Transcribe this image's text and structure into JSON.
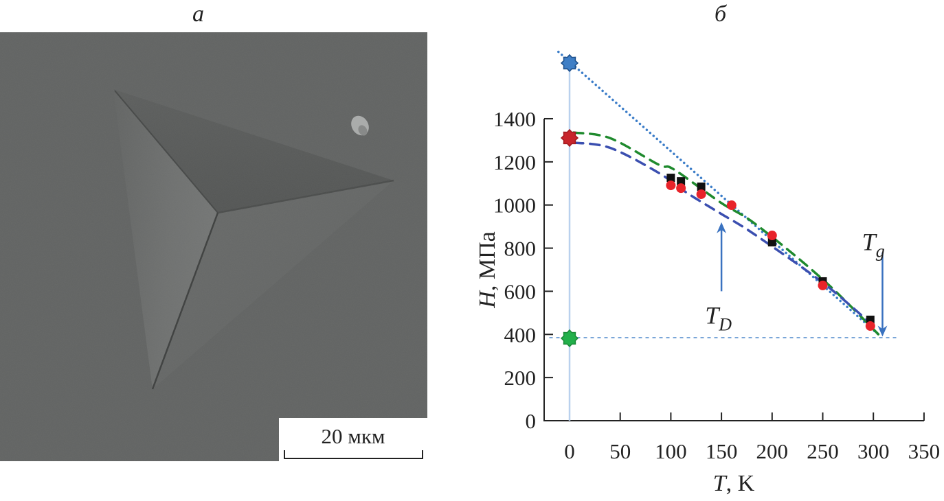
{
  "panels": {
    "a_label": "a",
    "b_label": "б"
  },
  "sem_image": {
    "description": "SEM micrograph of a Berkovich indentation imprint",
    "scale_bar_label": "20 мкм",
    "colors": {
      "background": "#636564",
      "dark_face": "#555756",
      "light_face": "#6c6e6d"
    }
  },
  "chart_data": {
    "type": "scatter",
    "title": "",
    "xlabel": "T, K",
    "xlabel_italic": "T",
    "xlabel_rest": ", K",
    "ylabel": "H, МПа",
    "ylabel_italic": "H",
    "ylabel_rest": ", МПа",
    "xlim": [
      -25,
      350
    ],
    "ylim": [
      0,
      1400
    ],
    "x_ticks": [
      0,
      50,
      100,
      150,
      200,
      250,
      300,
      350
    ],
    "y_ticks": [
      0,
      200,
      400,
      600,
      800,
      1000,
      1200,
      1400
    ],
    "x_tick_labels": [
      "0",
      "50",
      "100",
      "150",
      "200",
      "250",
      "300",
      "350"
    ],
    "y_tick_labels": [
      "0",
      "200",
      "400",
      "600",
      "800",
      "1000",
      "1200",
      "1400"
    ],
    "grid": false,
    "series": [
      {
        "name": "squares",
        "marker": "square",
        "color": "#111111",
        "points": [
          [
            100,
            1126
          ],
          [
            110,
            1110
          ],
          [
            130,
            1085
          ],
          [
            200,
            827
          ],
          [
            250,
            646
          ],
          [
            297,
            468
          ]
        ]
      },
      {
        "name": "circles",
        "marker": "circle",
        "color": "#e8232a",
        "points": [
          [
            100,
            1091
          ],
          [
            110,
            1078
          ],
          [
            130,
            1050
          ],
          [
            160,
            999
          ],
          [
            200,
            859
          ],
          [
            250,
            627
          ],
          [
            297,
            439
          ]
        ]
      },
      {
        "name": "fit-green",
        "type": "line",
        "style": "dashed",
        "color": "#1f8a2e",
        "points": [
          [
            4,
            1336
          ],
          [
            40,
            1310
          ],
          [
            88,
            1187
          ],
          [
            103,
            1165
          ],
          [
            149,
            1012
          ],
          [
            184,
            910
          ],
          [
            250,
            655
          ],
          [
            307,
            391
          ]
        ]
      },
      {
        "name": "fit-blue",
        "type": "line",
        "style": "dashed",
        "color": "#3b4fb0",
        "points": [
          [
            4,
            1289
          ],
          [
            40,
            1265
          ],
          [
            88,
            1149
          ],
          [
            116,
            1056
          ],
          [
            149,
            961
          ],
          [
            181,
            869
          ],
          [
            250,
            640
          ],
          [
            300,
            440
          ]
        ]
      },
      {
        "name": "linear-extrapolation",
        "type": "line",
        "style": "dotted",
        "color": "#3a7cc8",
        "points": [
          [
            -11,
            1710
          ],
          [
            307,
            391
          ]
        ]
      },
      {
        "name": "athermal-level",
        "type": "line",
        "style": "dashed-thin",
        "color": "#7aa6d8",
        "points": [
          [
            -20,
            385
          ],
          [
            325,
            385
          ]
        ]
      },
      {
        "name": "T0-vertical",
        "type": "line",
        "style": "solid-thin",
        "color": "#b9d1ee",
        "points": [
          [
            0,
            1658
          ],
          [
            0,
            0
          ]
        ]
      }
    ],
    "special_markers": [
      {
        "name": "blue-star",
        "x": 0,
        "y": 1658,
        "color": "#3f7fc6",
        "edge": "#1d4f8a"
      },
      {
        "name": "red-star",
        "x": 0,
        "y": 1311,
        "color": "#c8252b",
        "edge": "#a01a1f"
      },
      {
        "name": "green-star",
        "x": 0,
        "y": 382,
        "color": "#22b04a",
        "edge": "#1a8a38"
      }
    ],
    "annotations": [
      {
        "name": "TD",
        "text": "T",
        "subscript": "D",
        "arrow_x": 150,
        "arrow_from": 600,
        "arrow_to": 920,
        "label_x": 147,
        "label_y": 450
      },
      {
        "name": "Tg",
        "text": "T",
        "subscript": "g",
        "arrow_x": 309,
        "arrow_from": 780,
        "arrow_to": 390,
        "label_x": 300,
        "label_y": 790
      }
    ],
    "annotation_arrow_color": "#3a72c0"
  }
}
